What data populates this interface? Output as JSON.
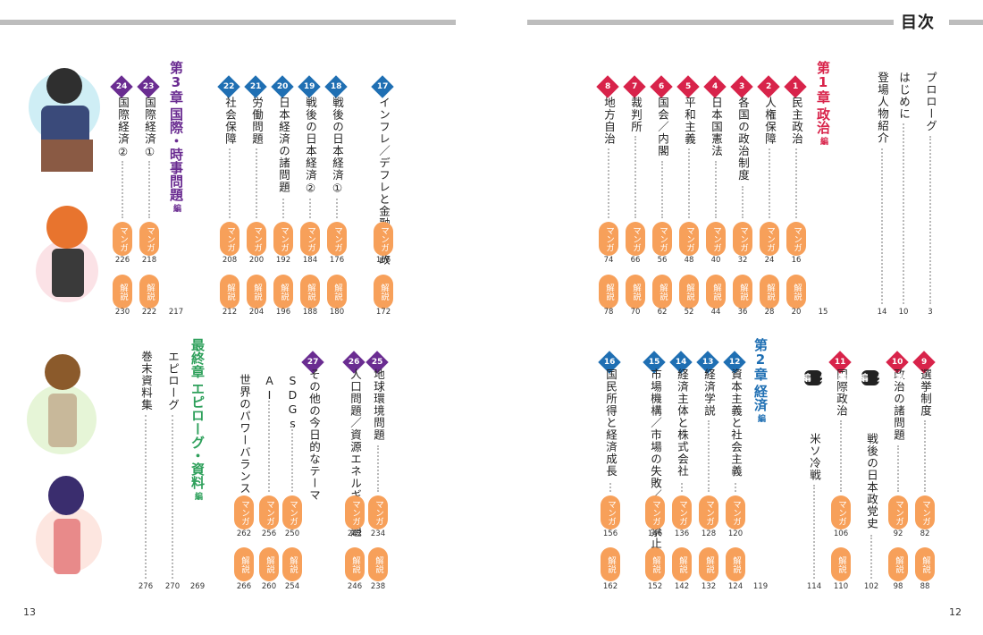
{
  "header": {
    "title": "目次",
    "left_page_number": "13",
    "right_page_number": "12"
  },
  "labels": {
    "manga": "マンガ",
    "kaisetsu": "解説",
    "chapter_suffix": "編"
  },
  "colors": {
    "chapter1": "#d8234a",
    "chapter2": "#1f6fb3",
    "chapter3": "#6a2c91",
    "final": "#2ea05b",
    "pill": "#f7a05a"
  },
  "front": [
    {
      "title": "プロローグ",
      "page": "3"
    },
    {
      "title": "はじめに",
      "page": "10"
    },
    {
      "title": "登場人物紹介",
      "page": "14"
    }
  ],
  "chapter1": {
    "ch": "第1章",
    "name": "政治",
    "ed": "編",
    "page": "15"
  },
  "ch1_items": [
    {
      "n": "1",
      "title": "民主政治",
      "manga": "16",
      "kaisetsu": "20"
    },
    {
      "n": "2",
      "title": "人権保障",
      "manga": "24",
      "kaisetsu": "28"
    },
    {
      "n": "3",
      "title": "各国の政治制度",
      "manga": "32",
      "kaisetsu": "36"
    },
    {
      "n": "4",
      "title": "日本国憲法",
      "manga": "40",
      "kaisetsu": "44"
    },
    {
      "n": "5",
      "title": "平和主義",
      "manga": "48",
      "kaisetsu": "52"
    },
    {
      "n": "6",
      "title": "国会／内閣",
      "manga": "56",
      "kaisetsu": "62"
    },
    {
      "n": "7",
      "title": "裁判所",
      "manga": "66",
      "kaisetsu": "70"
    },
    {
      "n": "8",
      "title": "地方自治",
      "manga": "74",
      "kaisetsu": "78"
    }
  ],
  "ch1_items_b": [
    {
      "n": "9",
      "title": "選挙制度",
      "manga": "82",
      "kaisetsu": "88"
    },
    {
      "n": "10",
      "title": "政治の諸問題",
      "manga": "92",
      "kaisetsu": "98"
    }
  ],
  "bangai1": {
    "label": "番外編①",
    "title": "戦後の日本政党史",
    "page": "102"
  },
  "ch1_item_11": {
    "n": "11",
    "title": "国際政治",
    "manga": "106",
    "kaisetsu": "110"
  },
  "bangai2": {
    "label": "番外編②",
    "title": "米ソ冷戦",
    "page": "114"
  },
  "chapter2": {
    "ch": "第2章",
    "name": "経済",
    "ed": "編",
    "page": "119"
  },
  "ch2_items": [
    {
      "n": "12",
      "title": "資本主義と社会主義",
      "manga": "120",
      "kaisetsu": "124"
    },
    {
      "n": "13",
      "title": "経済学説",
      "manga": "128",
      "kaisetsu": "132"
    },
    {
      "n": "14",
      "title": "経済主体と株式会社",
      "manga": "136",
      "kaisetsu": "142"
    },
    {
      "n": "15",
      "title": "市場機構／市場の失敗／独占禁止法",
      "manga": "146",
      "kaisetsu": "152"
    },
    {
      "n": "16",
      "title": "国民所得と経済成長",
      "manga": "156",
      "kaisetsu": "162"
    }
  ],
  "ch2_items_b": [
    {
      "n": "17",
      "title": "インフレ／デフレと金融／財政",
      "manga": "166",
      "kaisetsu": "172"
    },
    {
      "n": "18",
      "title": "戦後の日本経済①",
      "manga": "176",
      "kaisetsu": "180"
    },
    {
      "n": "19",
      "title": "戦後の日本経済②",
      "manga": "184",
      "kaisetsu": "188"
    },
    {
      "n": "20",
      "title": "日本経済の諸問題",
      "manga": "192",
      "kaisetsu": "196"
    },
    {
      "n": "21",
      "title": "労働問題",
      "manga": "200",
      "kaisetsu": "204"
    },
    {
      "n": "22",
      "title": "社会保障",
      "manga": "208",
      "kaisetsu": "212"
    }
  ],
  "chapter3": {
    "ch": "第3章",
    "name": "国際・時事問題",
    "ed": "編",
    "page": "217"
  },
  "ch3_items": [
    {
      "n": "23",
      "title": "国際経済①",
      "manga": "218",
      "kaisetsu": "222"
    },
    {
      "n": "24",
      "title": "国際経済②",
      "manga": "226",
      "kaisetsu": "230"
    }
  ],
  "ch3_items_b": [
    {
      "n": "25",
      "title": "地球環境問題",
      "manga": "234",
      "kaisetsu": "238"
    },
    {
      "n": "26",
      "title": "人口問題／資源エネルギー問題",
      "manga": "242",
      "kaisetsu": "246"
    },
    {
      "n": "27",
      "title": "その他の今日的なテーマ",
      "manga": "",
      "kaisetsu": ""
    }
  ],
  "ch3_sub": [
    {
      "title": "SDGs",
      "manga": "250",
      "kaisetsu": "254"
    },
    {
      "title": "AI",
      "manga": "256",
      "kaisetsu": "260"
    },
    {
      "title": "世界のパワーバランス",
      "manga": "262",
      "kaisetsu": "266"
    }
  ],
  "final": {
    "ch": "最終章",
    "name": "エピローグ・資料",
    "ed": "編",
    "page": "269"
  },
  "final_items": [
    {
      "title": "エピローグ",
      "page": "270"
    },
    {
      "title": "巻末資料集",
      "page": "276"
    }
  ]
}
